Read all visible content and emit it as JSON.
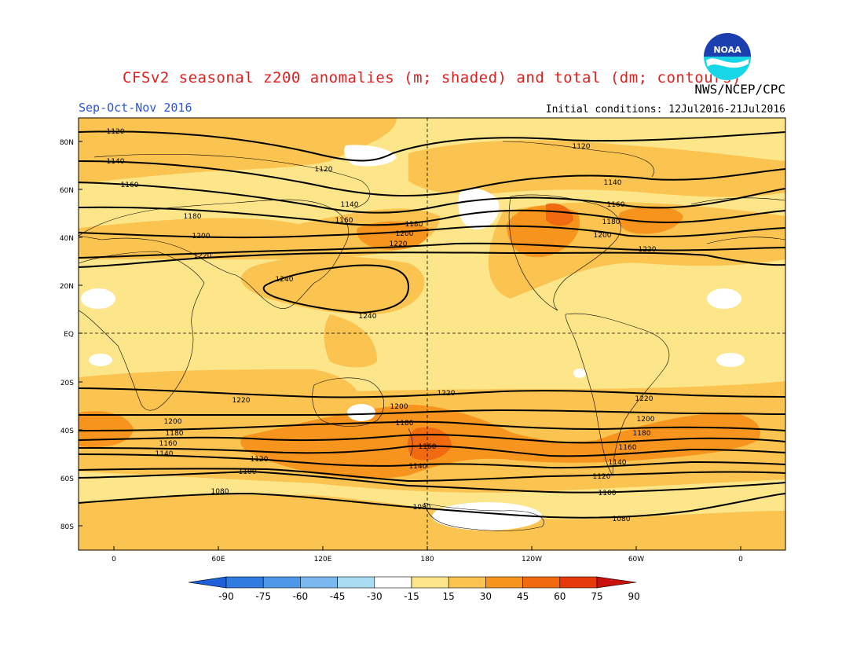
{
  "header": {
    "title": "CFSv2 seasonal z200 anomalies (m; shaded) and total (dm; contours)",
    "season": "Sep-Oct-Nov 2016",
    "agency": "NWS/NCEP/CPC",
    "initial_conditions": "Initial conditions: 12Jul2016-21Jul2016",
    "logo_text": "NOAA"
  },
  "axes": {
    "lat_labels": [
      "80N",
      "60N",
      "40N",
      "20N",
      "EQ",
      "20S",
      "40S",
      "60S",
      "80S"
    ],
    "lon_labels": [
      "0",
      "60E",
      "120E",
      "180",
      "120W",
      "60W",
      "0"
    ]
  },
  "colorbar": {
    "ticks": [
      "-90",
      "-75",
      "-60",
      "-45",
      "-30",
      "-15",
      "15",
      "30",
      "45",
      "60",
      "75",
      "90"
    ],
    "colors": [
      "#1f5fd8",
      "#2f7be0",
      "#4c97e8",
      "#7ab8ef",
      "#a9dcf3",
      "#ffffff",
      "#fde68a",
      "#fbc350",
      "#f7941d",
      "#f26a0f",
      "#e73a0a",
      "#c8100d"
    ]
  },
  "chart_data": {
    "type": "contour_map",
    "variable": "z200",
    "anomaly_units": "m",
    "total_units": "dm",
    "contour_levels": [
      1080,
      1100,
      1120,
      1140,
      1160,
      1180,
      1200,
      1220,
      1240
    ],
    "contour_labels": [
      "1120",
      "1140",
      "1160",
      "1180",
      "1200",
      "1220",
      "1240",
      "1120",
      "1140",
      "1160",
      "1180",
      "1200",
      "1220",
      "1240",
      "1120",
      "1140",
      "1160",
      "1180",
      "1200",
      "1220",
      "1220",
      "1200",
      "1180",
      "1160",
      "1140",
      "1120",
      "1100",
      "1080",
      "1220",
      "1200",
      "1180",
      "1160",
      "1140",
      "1220",
      "1200",
      "1180",
      "1160",
      "1140",
      "1120",
      "1100",
      "1080",
      "1080"
    ]
  }
}
